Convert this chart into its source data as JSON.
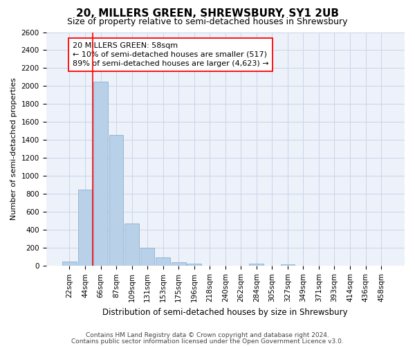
{
  "title": "20, MILLERS GREEN, SHREWSBURY, SY1 2UB",
  "subtitle": "Size of property relative to semi-detached houses in Shrewsbury",
  "xlabel": "Distribution of semi-detached houses by size in Shrewsbury",
  "ylabel": "Number of semi-detached properties",
  "footer_line1": "Contains HM Land Registry data © Crown copyright and database right 2024.",
  "footer_line2": "Contains public sector information licensed under the Open Government Licence v3.0.",
  "bar_labels": [
    "22sqm",
    "44sqm",
    "66sqm",
    "87sqm",
    "109sqm",
    "131sqm",
    "153sqm",
    "175sqm",
    "196sqm",
    "218sqm",
    "240sqm",
    "262sqm",
    "284sqm",
    "305sqm",
    "327sqm",
    "349sqm",
    "371sqm",
    "393sqm",
    "414sqm",
    "436sqm",
    "458sqm"
  ],
  "bar_values": [
    50,
    850,
    2050,
    1460,
    470,
    200,
    95,
    42,
    25,
    0,
    0,
    0,
    25,
    0,
    20,
    0,
    0,
    0,
    0,
    0,
    0
  ],
  "bar_color": "#b8d0e8",
  "bar_edge_color": "#8ab0d0",
  "property_label": "20 MILLERS GREEN: 58sqm",
  "pct_smaller": 10,
  "count_smaller": 517,
  "pct_larger": 89,
  "count_larger": 4623,
  "vline_x_index": 1.5,
  "ylim": [
    0,
    2600
  ],
  "yticks": [
    0,
    200,
    400,
    600,
    800,
    1000,
    1200,
    1400,
    1600,
    1800,
    2000,
    2200,
    2400,
    2600
  ],
  "grid_color": "#c8d4e8",
  "background_color": "#edf2fa",
  "title_fontsize": 11,
  "subtitle_fontsize": 9,
  "tick_fontsize": 7.5,
  "ylabel_fontsize": 8,
  "xlabel_fontsize": 8.5,
  "annotation_fontsize": 8,
  "footer_fontsize": 6.5
}
